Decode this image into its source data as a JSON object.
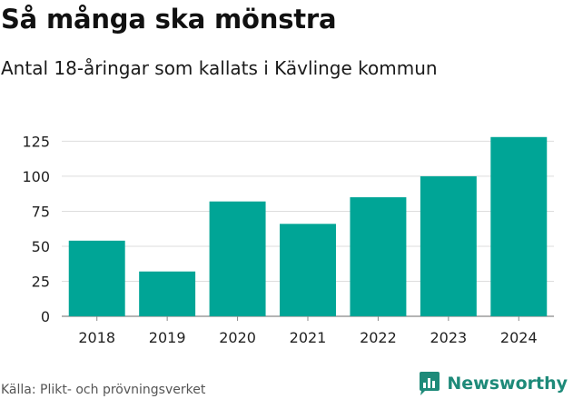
{
  "header": {
    "title": "Så många ska mönstra",
    "subtitle": "Antal 18-åringar som kallats i Kävlinge kommun"
  },
  "footer": {
    "source": "Källa: Plikt- och prövningsverket",
    "brand": "Newsworthy",
    "brand_color": "#1e8a79",
    "brand_icon": "newsworthy-logo-icon"
  },
  "chart_data": {
    "type": "bar",
    "title": "Så många ska mönstra",
    "subtitle": "Antal 18-åringar som kallats i Kävlinge kommun",
    "categories": [
      "2018",
      "2019",
      "2020",
      "2021",
      "2022",
      "2023",
      "2024"
    ],
    "values": [
      54,
      32,
      82,
      66,
      85,
      100,
      128
    ],
    "ylim": [
      0,
      135
    ],
    "yticks": [
      0,
      25,
      50,
      75,
      100,
      125
    ],
    "xlabel": "",
    "ylabel": "",
    "grid": true,
    "bar_color": "#00a596"
  }
}
